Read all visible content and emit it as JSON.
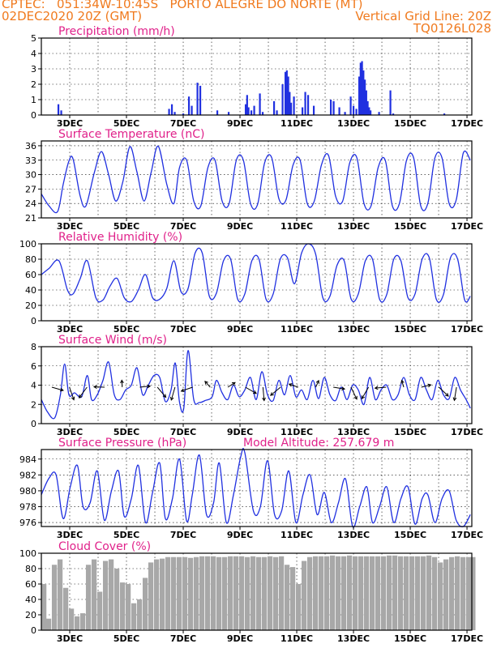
{
  "header": {
    "line1_left": "CPTEC:   051:34W-10:45S   PORTO ALEGRE DO NORTE (MT)",
    "line2_left": "02DEC2020 20Z (GMT)",
    "line2_right": "Vertical Grid Line: 20Z",
    "line3_right": "TQ0126L028"
  },
  "colors": {
    "header": "#f07a1e",
    "title": "#e0218a",
    "line": "#2030e0",
    "cloud": "#a8a8a8",
    "axis": "#000000"
  },
  "x_ticks": [
    "3DEC",
    "5DEC",
    "7DEC",
    "9DEC",
    "11DEC",
    "13DEC",
    "15DEC",
    "17DEC"
  ],
  "chart_data": [
    {
      "type": "bar",
      "title": "Precipitation (mm/h)",
      "ylim": [
        0,
        5
      ],
      "yticks": [
        "0",
        "1",
        "2",
        "3",
        "4",
        "5"
      ],
      "x_ticks": [
        "3DEC",
        "5DEC",
        "7DEC",
        "9DEC",
        "11DEC",
        "13DEC",
        "15DEC",
        "17DEC"
      ],
      "bars": [
        [
          2.4,
          0.7
        ],
        [
          2.5,
          0.3
        ],
        [
          6.3,
          0.4
        ],
        [
          6.4,
          0.7
        ],
        [
          6.5,
          0.2
        ],
        [
          6.8,
          0.1
        ],
        [
          7.0,
          1.2
        ],
        [
          7.1,
          0.6
        ],
        [
          7.3,
          2.1
        ],
        [
          7.4,
          1.9
        ],
        [
          8.0,
          0.3
        ],
        [
          8.4,
          0.2
        ],
        [
          9.0,
          0.7
        ],
        [
          9.05,
          1.3
        ],
        [
          9.1,
          0.5
        ],
        [
          9.2,
          0.3
        ],
        [
          9.3,
          0.6
        ],
        [
          9.5,
          1.4
        ],
        [
          9.6,
          0.2
        ],
        [
          10.0,
          0.9
        ],
        [
          10.1,
          0.3
        ],
        [
          10.3,
          2.0
        ],
        [
          10.4,
          2.8
        ],
        [
          10.45,
          2.9
        ],
        [
          10.5,
          2.5
        ],
        [
          10.55,
          1.5
        ],
        [
          10.6,
          0.8
        ],
        [
          10.7,
          1.2
        ],
        [
          11.0,
          0.5
        ],
        [
          11.1,
          1.5
        ],
        [
          11.2,
          1.3
        ],
        [
          11.4,
          0.6
        ],
        [
          12.0,
          1.0
        ],
        [
          12.1,
          0.9
        ],
        [
          12.3,
          0.5
        ],
        [
          12.5,
          0.2
        ],
        [
          12.7,
          1.2
        ],
        [
          12.8,
          0.6
        ],
        [
          12.9,
          0.4
        ],
        [
          13.0,
          2.5
        ],
        [
          13.05,
          3.4
        ],
        [
          13.1,
          3.5
        ],
        [
          13.15,
          2.9
        ],
        [
          13.2,
          2.3
        ],
        [
          13.25,
          1.6
        ],
        [
          13.3,
          0.9
        ],
        [
          13.35,
          0.5
        ],
        [
          13.4,
          0.3
        ],
        [
          13.7,
          0.2
        ],
        [
          14.1,
          1.6
        ],
        [
          14.2,
          0.1
        ],
        [
          16.0,
          0.1
        ]
      ]
    },
    {
      "type": "line",
      "title": "Surface Temperature (nC)",
      "ylim": [
        21,
        37
      ],
      "yticks": [
        "21",
        "24",
        "27",
        "30",
        "33",
        "36"
      ],
      "x_ticks": [
        "3DEC",
        "5DEC",
        "7DEC",
        "9DEC",
        "11DEC",
        "13DEC",
        "15DEC",
        "17DEC"
      ],
      "x": [
        1.83,
        2.1,
        2.4,
        2.6,
        2.8,
        2.95,
        3.2,
        3.4,
        3.7,
        3.95,
        4.2,
        4.45,
        4.7,
        4.95,
        5.2,
        5.45,
        5.7,
        5.95,
        6.25,
        6.5,
        6.7,
        6.95,
        7.2,
        7.45,
        7.7,
        7.95,
        8.2,
        8.45,
        8.7,
        8.95,
        9.2,
        9.45,
        9.7,
        9.95,
        10.2,
        10.45,
        10.7,
        10.95,
        11.2,
        11.45,
        11.7,
        11.95,
        12.2,
        12.45,
        12.7,
        12.95,
        13.2,
        13.45,
        13.7,
        13.95,
        14.2,
        14.45,
        14.7,
        14.95,
        15.2,
        15.45,
        15.7,
        15.95,
        16.2,
        16.45,
        16.7,
        16.95
      ],
      "y": [
        26,
        23.5,
        22.3,
        28,
        32.8,
        33.2,
        25.5,
        23.5,
        30.5,
        34.8,
        30,
        24.5,
        28.5,
        35.8,
        30.5,
        24.5,
        30.5,
        35.9,
        28,
        24,
        31.5,
        33,
        24.5,
        23.5,
        31.5,
        33,
        24.5,
        24,
        33,
        33,
        24,
        23.8,
        32.5,
        33.5,
        25,
        24.7,
        32,
        33,
        24,
        24.5,
        32,
        34,
        25.5,
        24.5,
        32.5,
        33.5,
        24,
        23.5,
        31.5,
        33,
        23.5,
        24,
        33,
        33.5,
        23.5,
        24,
        33.5,
        33.5,
        24,
        24.7,
        34.5,
        33
      ]
    },
    {
      "type": "line",
      "title": "Relative Humidity (%)",
      "ylim": [
        0,
        100
      ],
      "yticks": [
        "0",
        "20",
        "40",
        "60",
        "80",
        "100"
      ],
      "x_ticks": [
        "3DEC",
        "5DEC",
        "7DEC",
        "9DEC",
        "11DEC",
        "13DEC",
        "15DEC",
        "17DEC"
      ],
      "x": [
        1.83,
        2.1,
        2.45,
        2.75,
        2.95,
        3.2,
        3.45,
        3.75,
        4.0,
        4.25,
        4.5,
        4.75,
        5.0,
        5.25,
        5.5,
        5.75,
        6.0,
        6.25,
        6.5,
        6.75,
        7.0,
        7.25,
        7.5,
        7.75,
        8.0,
        8.25,
        8.5,
        8.75,
        9.0,
        9.25,
        9.5,
        9.75,
        10.0,
        10.25,
        10.5,
        10.75,
        11.0,
        11.25,
        11.5,
        11.75,
        12.0,
        12.25,
        12.5,
        12.75,
        13.0,
        13.25,
        13.5,
        13.75,
        14.0,
        14.25,
        14.5,
        14.75,
        15.0,
        15.25,
        15.5,
        15.75,
        16.0,
        16.25,
        16.5,
        16.75,
        16.95
      ],
      "y": [
        60,
        68,
        78,
        40,
        35,
        55,
        78,
        30,
        27,
        45,
        55,
        30,
        25,
        40,
        60,
        30,
        28,
        42,
        78,
        38,
        42,
        88,
        88,
        32,
        36,
        78,
        80,
        28,
        35,
        78,
        80,
        28,
        35,
        80,
        82,
        48,
        88,
        100,
        86,
        30,
        32,
        72,
        78,
        28,
        35,
        78,
        80,
        28,
        34,
        80,
        78,
        30,
        35,
        80,
        82,
        28,
        34,
        82,
        80,
        27,
        32
      ]
    },
    {
      "type": "line",
      "title": "Surface Wind (m/s)",
      "ylim": [
        0,
        8
      ],
      "yticks": [
        "0",
        "2",
        "4",
        "6",
        "8"
      ],
      "x_ticks": [
        "3DEC",
        "5DEC",
        "7DEC",
        "9DEC",
        "11DEC",
        "13DEC",
        "15DEC",
        "17DEC"
      ],
      "x": [
        1.83,
        2.05,
        2.3,
        2.5,
        2.65,
        2.8,
        3.0,
        3.25,
        3.45,
        3.6,
        3.8,
        4.0,
        4.2,
        4.4,
        4.6,
        4.8,
        5.0,
        5.2,
        5.4,
        5.6,
        5.8,
        6.0,
        6.2,
        6.4,
        6.55,
        6.7,
        6.85,
        7.0,
        7.2,
        7.4,
        7.6,
        7.85,
        8.0,
        8.2,
        8.4,
        8.6,
        8.8,
        9.0,
        9.2,
        9.4,
        9.6,
        9.8,
        10.0,
        10.2,
        10.4,
        10.6,
        10.8,
        11.0,
        11.2,
        11.4,
        11.6,
        11.8,
        12.0,
        12.2,
        12.4,
        12.6,
        12.8,
        13.0,
        13.2,
        13.4,
        13.6,
        13.8,
        14.0,
        14.2,
        14.4,
        14.6,
        14.8,
        15.0,
        15.2,
        15.4,
        15.6,
        15.8,
        16.0,
        16.2,
        16.4,
        16.6,
        16.8,
        16.95
      ],
      "y": [
        2.5,
        1.2,
        0.6,
        3,
        6.2,
        3,
        3.2,
        2.8,
        5,
        2.5,
        3,
        4.5,
        6.4,
        3,
        2.5,
        3.5,
        4,
        5.8,
        3,
        4,
        5,
        4.8,
        2.3,
        3.5,
        6.3,
        2.2,
        1.6,
        7.6,
        2.5,
        2.2,
        2.4,
        2.8,
        4.5,
        3.2,
        2.5,
        4,
        2.8,
        3.5,
        4.8,
        2.5,
        5.4,
        3,
        2.4,
        4.5,
        3,
        5,
        2.8,
        3.5,
        2.5,
        4.5,
        2.6,
        4.8,
        3,
        2.4,
        3.8,
        2.5,
        4,
        3.5,
        2,
        4.8,
        2.5,
        3.5,
        4,
        2.5,
        3,
        4.8,
        3,
        2.5,
        4.8,
        3.5,
        2.5,
        4.5,
        3,
        2.6,
        4.8,
        3.5,
        2.5,
        1.6
      ]
    },
    {
      "type": "line",
      "title": "Surface Pressure (hPa)",
      "annotation": "Model Altitude: 257.679 m",
      "ylim": [
        975.5,
        985.2
      ],
      "yticks": [
        "976",
        "978",
        "980",
        "982",
        "984"
      ],
      "x_ticks": [
        "3DEC",
        "5DEC",
        "7DEC",
        "9DEC",
        "11DEC",
        "13DEC",
        "15DEC",
        "17DEC"
      ],
      "x": [
        1.83,
        2.1,
        2.35,
        2.6,
        2.85,
        3.1,
        3.3,
        3.55,
        3.8,
        4.05,
        4.3,
        4.55,
        4.75,
        5.0,
        5.25,
        5.5,
        5.75,
        6.0,
        6.2,
        6.45,
        6.7,
        6.95,
        7.15,
        7.4,
        7.65,
        7.9,
        8.1,
        8.35,
        8.6,
        8.85,
        9.0,
        9.3,
        9.55,
        9.8,
        10.05,
        10.3,
        10.55,
        10.8,
        11.05,
        11.3,
        11.55,
        11.8,
        12.05,
        12.3,
        12.55,
        12.8,
        13.05,
        13.3,
        13.5,
        13.75,
        14.0,
        14.25,
        14.5,
        14.75,
        15.0,
        15.25,
        15.45,
        15.7,
        15.95,
        16.2,
        16.45,
        16.7,
        16.95
      ],
      "y": [
        979.5,
        981.6,
        982.0,
        976.5,
        980.5,
        983.2,
        978.0,
        978.5,
        982.5,
        976.3,
        980.0,
        982.5,
        976.8,
        979.0,
        983.2,
        976.0,
        979.8,
        983.5,
        976.5,
        979.0,
        984.0,
        976.2,
        979.5,
        984.5,
        977.0,
        978.5,
        983.5,
        976.0,
        979.5,
        984.2,
        984.8,
        977.5,
        978.0,
        983.8,
        977.0,
        977.5,
        982.5,
        976.0,
        979.5,
        982.0,
        977.0,
        979.8,
        976.0,
        978.5,
        981.5,
        975.5,
        978.0,
        980.5,
        976.0,
        978.0,
        980.5,
        976.0,
        979.0,
        980.5,
        975.8,
        979.0,
        979.5,
        976.0,
        979.0,
        980.0,
        976.3,
        975.5,
        977.0
      ]
    },
    {
      "type": "bar",
      "title": "Cloud Cover (%)",
      "ylim": [
        0,
        100
      ],
      "yticks": [
        "0",
        "20",
        "40",
        "60",
        "80",
        "100"
      ],
      "x_ticks": [
        "3DEC",
        "5DEC",
        "7DEC",
        "9DEC",
        "11DEC",
        "13DEC",
        "15DEC",
        "17DEC"
      ],
      "x": [
        1.83,
        2.0,
        2.2,
        2.4,
        2.6,
        2.8,
        3.0,
        3.2,
        3.4,
        3.6,
        3.8,
        4.0,
        4.2,
        4.4,
        4.6,
        4.8,
        5.0,
        5.2,
        5.4,
        5.6,
        5.8,
        6.0,
        6.2,
        6.4,
        6.6,
        6.8,
        7.0,
        7.2,
        7.4,
        7.6,
        7.8,
        8.0,
        8.2,
        8.4,
        8.6,
        8.8,
        9.0,
        9.2,
        9.4,
        9.6,
        9.8,
        10.0,
        10.2,
        10.4,
        10.6,
        10.8,
        11.0,
        11.2,
        11.4,
        11.6,
        11.8,
        12.0,
        12.2,
        12.4,
        12.6,
        12.8,
        13.0,
        13.2,
        13.4,
        13.6,
        13.8,
        14.0,
        14.2,
        14.4,
        14.6,
        14.8,
        15.0,
        15.2,
        15.4,
        15.6,
        15.8,
        16.0,
        16.2,
        16.4,
        16.6,
        16.8,
        16.95
      ],
      "values": [
        60,
        15,
        85,
        92,
        55,
        28,
        18,
        22,
        85,
        92,
        50,
        90,
        92,
        80,
        62,
        60,
        35,
        40,
        68,
        88,
        92,
        93,
        95,
        95,
        95,
        95,
        94,
        95,
        96,
        96,
        96,
        95,
        95,
        96,
        96,
        96,
        95,
        96,
        95,
        95,
        96,
        95,
        96,
        85,
        82,
        60,
        90,
        95,
        96,
        96,
        96,
        97,
        96,
        96,
        97,
        96,
        96,
        96,
        96,
        96,
        96,
        97,
        97,
        96,
        96,
        96,
        96,
        96,
        97,
        95,
        88,
        92,
        95,
        96,
        95,
        95,
        95
      ]
    }
  ]
}
